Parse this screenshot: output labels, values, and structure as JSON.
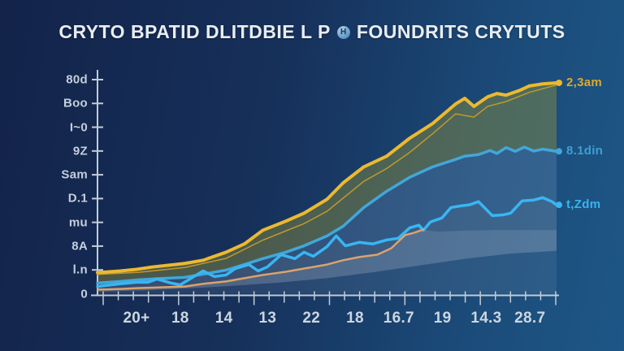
{
  "title": {
    "text_left": "CRYTO BPATID DLITDBIE L P",
    "text_right": "FOUNDRITS CRYTUTS",
    "icon_letter": "H"
  },
  "colors": {
    "background_left": "#13234a",
    "background_right": "#1d5787",
    "axis": "#c3ccd6",
    "title_text": "#e8edf3",
    "y_label_text": "#c5cedb",
    "x_label_text": "#ccd6e0"
  },
  "chart_data": {
    "type": "area",
    "title": "CRYTO BPATID DLITDBIE L P FOUNDRITS CRYTUTS",
    "xlabel": "",
    "ylabel": "",
    "ylim": [
      0,
      800
    ],
    "grid": false,
    "legend_position": "right-end-labels",
    "y_tick_labels_top_to_bottom": [
      "80d",
      "Boo",
      "I~0",
      "9Z",
      "Sam",
      "D.1",
      "mu",
      "8A",
      "l.n",
      "0"
    ],
    "x_tick_labels": [
      "20+",
      "18",
      "14",
      "13",
      "22",
      "18",
      "16.7",
      "19",
      "14.3",
      "28.7"
    ],
    "series": [
      {
        "name": "gold-secondary",
        "role": "line",
        "color": "#bf9a2c",
        "width": 1.5,
        "end_dot": false,
        "points": [
          [
            0,
            72
          ],
          [
            9,
            80
          ],
          [
            19,
            98
          ],
          [
            28,
            132
          ],
          [
            36,
            200
          ],
          [
            45,
            262
          ],
          [
            50,
            308
          ],
          [
            58,
            420
          ],
          [
            63,
            468
          ],
          [
            68,
            528
          ],
          [
            73,
            598
          ],
          [
            78,
            672
          ],
          [
            82,
            660
          ],
          [
            85,
            700
          ],
          [
            89,
            718
          ],
          [
            94,
            752
          ],
          [
            100,
            780
          ]
        ]
      },
      {
        "name": "2,3am",
        "role": "line",
        "color": "#ecb92f",
        "width": 4,
        "end_dot": true,
        "points": [
          [
            0,
            79
          ],
          [
            5,
            85
          ],
          [
            8.5,
            91
          ],
          [
            12,
            100
          ],
          [
            19,
            113
          ],
          [
            23,
            125
          ],
          [
            28,
            155
          ],
          [
            32,
            186
          ],
          [
            36,
            237
          ],
          [
            41,
            271
          ],
          [
            45,
            301
          ],
          [
            50,
            353
          ],
          [
            53.5,
            414
          ],
          [
            58,
            474
          ],
          [
            63,
            514
          ],
          [
            68,
            581
          ],
          [
            73,
            636
          ],
          [
            78,
            709
          ],
          [
            80,
            730
          ],
          [
            82,
            700
          ],
          [
            85,
            736
          ],
          [
            87,
            748
          ],
          [
            89,
            742
          ],
          [
            92,
            760
          ],
          [
            94,
            776
          ],
          [
            97,
            784
          ],
          [
            100,
            788
          ]
        ]
      },
      {
        "name": "8.1din",
        "role": "line",
        "color": "#41a7d9",
        "width": 3.5,
        "end_dot": true,
        "points": [
          [
            0,
            40
          ],
          [
            5,
            46
          ],
          [
            9,
            52
          ],
          [
            13,
            56
          ],
          [
            19,
            61
          ],
          [
            23,
            73
          ],
          [
            28,
            88
          ],
          [
            32,
            109
          ],
          [
            36,
            131
          ],
          [
            41,
            155
          ],
          [
            45,
            179
          ],
          [
            50,
            216
          ],
          [
            53.5,
            252
          ],
          [
            58,
            322
          ],
          [
            63,
            383
          ],
          [
            68,
            435
          ],
          [
            73,
            474
          ],
          [
            78,
            502
          ],
          [
            80,
            514
          ],
          [
            83,
            520
          ],
          [
            85.5,
            535
          ],
          [
            87,
            524
          ],
          [
            89,
            546
          ],
          [
            91,
            532
          ],
          [
            93,
            548
          ],
          [
            95,
            533
          ],
          [
            97,
            540
          ],
          [
            100,
            532
          ]
        ]
      },
      {
        "name": "t,Zdm",
        "role": "line",
        "color": "#38b6f2",
        "width": 3.5,
        "end_dot": true,
        "points": [
          [
            0,
            27
          ],
          [
            5,
            37
          ],
          [
            8.5,
            43
          ],
          [
            11,
            43
          ],
          [
            13,
            55
          ],
          [
            16,
            40
          ],
          [
            18,
            33
          ],
          [
            21,
            64
          ],
          [
            23,
            85
          ],
          [
            25.5,
            64
          ],
          [
            28,
            70
          ],
          [
            30,
            94
          ],
          [
            33,
            109
          ],
          [
            35,
            85
          ],
          [
            37,
            100
          ],
          [
            40,
            146
          ],
          [
            43,
            131
          ],
          [
            45,
            155
          ],
          [
            47,
            140
          ],
          [
            50,
            176
          ],
          [
            52,
            216
          ],
          [
            54,
            179
          ],
          [
            57,
            192
          ],
          [
            60,
            186
          ],
          [
            63,
            201
          ],
          [
            65.5,
            207
          ],
          [
            68,
            246
          ],
          [
            70,
            256
          ],
          [
            71,
            237
          ],
          [
            72.5,
            268
          ],
          [
            75,
            283
          ],
          [
            77,
            322
          ],
          [
            79,
            328
          ],
          [
            81,
            332
          ],
          [
            83,
            344
          ],
          [
            86,
            292
          ],
          [
            88.5,
            295
          ],
          [
            90,
            301
          ],
          [
            92.5,
            347
          ],
          [
            95,
            350
          ],
          [
            97,
            359
          ],
          [
            99,
            344
          ],
          [
            100,
            332
          ]
        ]
      },
      {
        "name": "orange-trend",
        "role": "line",
        "color": "#dba36b",
        "width": 2.5,
        "end_dot": false,
        "points": [
          [
            0,
            15
          ],
          [
            5,
            18
          ],
          [
            8.5,
            21
          ],
          [
            14,
            24
          ],
          [
            19,
            27
          ],
          [
            23,
            37
          ],
          [
            28,
            46
          ],
          [
            32,
            58
          ],
          [
            36,
            70
          ],
          [
            41,
            82
          ],
          [
            45,
            94
          ],
          [
            50,
            109
          ],
          [
            53.5,
            125
          ],
          [
            57,
            137
          ],
          [
            61,
            146
          ],
          [
            64,
            170
          ],
          [
            67,
            219
          ],
          [
            69,
            228
          ],
          [
            71,
            240
          ]
        ]
      },
      {
        "name": "orange-ext",
        "role": "edge",
        "color": "none",
        "points": [
          [
            0,
            15
          ],
          [
            5,
            18
          ],
          [
            8.5,
            21
          ],
          [
            14,
            24
          ],
          [
            19,
            27
          ],
          [
            23,
            37
          ],
          [
            28,
            46
          ],
          [
            32,
            58
          ],
          [
            36,
            70
          ],
          [
            41,
            82
          ],
          [
            45,
            94
          ],
          [
            50,
            109
          ],
          [
            53.5,
            125
          ],
          [
            57,
            137
          ],
          [
            61,
            146
          ],
          [
            64,
            170
          ],
          [
            67,
            219
          ],
          [
            69,
            228
          ],
          [
            71,
            240
          ],
          [
            74,
            232
          ],
          [
            80,
            236
          ],
          [
            86,
            238
          ],
          [
            93,
            238
          ],
          [
            100,
            238
          ]
        ]
      },
      {
        "name": "lower-edge",
        "role": "edge",
        "color": "none",
        "points": [
          [
            0,
            8
          ],
          [
            10,
            12
          ],
          [
            20,
            20
          ],
          [
            30,
            30
          ],
          [
            40,
            42
          ],
          [
            50,
            58
          ],
          [
            60,
            80
          ],
          [
            70,
            105
          ],
          [
            80,
            130
          ],
          [
            90,
            150
          ],
          [
            100,
            160
          ]
        ]
      },
      {
        "name": "baseline",
        "role": "edge",
        "color": "none",
        "points": [
          [
            0,
            0
          ],
          [
            100,
            0
          ]
        ]
      }
    ],
    "bands": [
      {
        "upper": "2,3am",
        "lower": "8.1din",
        "color": "rgba(150,150,58,0.42)"
      },
      {
        "upper": "8.1din",
        "lower": "t,Zdm",
        "color": "rgba(108,146,184,0.30)"
      },
      {
        "upper": "t,Zdm",
        "lower": "orange-ext",
        "color": "rgba(138,158,182,0.30)"
      },
      {
        "upper": "orange-ext",
        "lower": "lower-edge",
        "color": "rgba(170,186,206,0.38)"
      },
      {
        "upper": "lower-edge",
        "lower": "baseline",
        "color": "rgba(105,135,168,0.22)"
      }
    ],
    "end_labels": [
      {
        "text": "2,3am",
        "series": "2,3am",
        "color": "#d9ab2e"
      },
      {
        "text": "8.1din",
        "series": "8.1din",
        "color": "#3e9fd4"
      },
      {
        "text": "t,Zdm",
        "series": "t,Zdm",
        "color": "#38b3ee"
      }
    ]
  }
}
